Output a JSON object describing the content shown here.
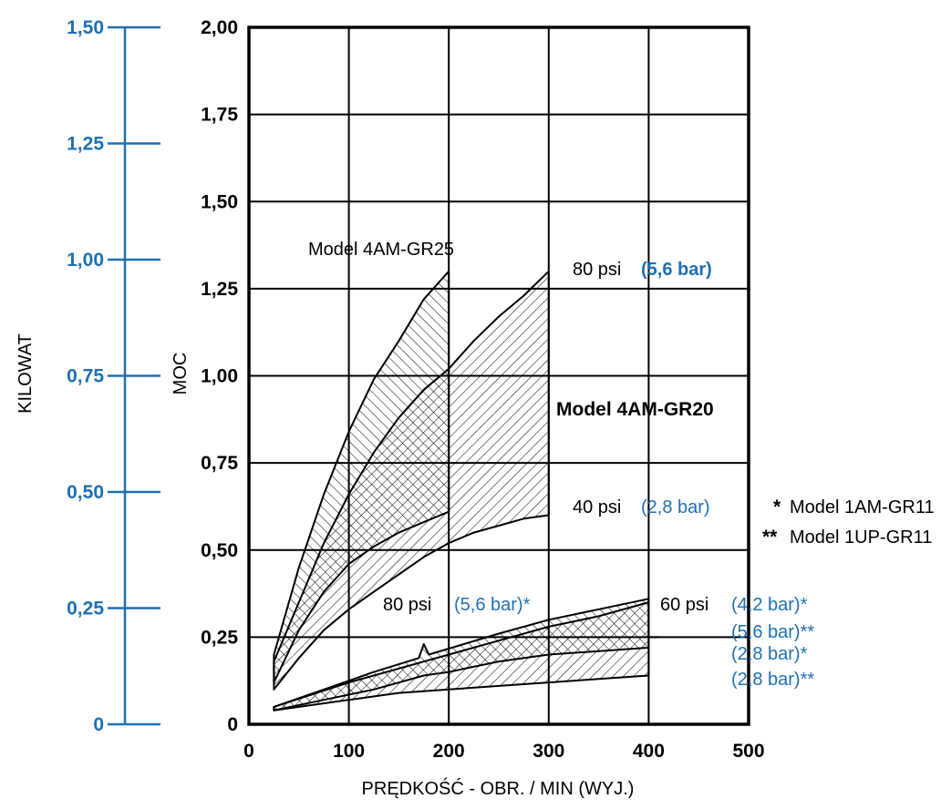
{
  "colors": {
    "accent_blue": "#1f6fb2",
    "ink": "#000000"
  },
  "chart_data": {
    "type": "area",
    "xlabel": "PRĘDKOŚĆ - OBR. / MIN (WYJ.)",
    "ylabel": "MOC",
    "ylabel_secondary": "KILOWAT",
    "xlim": [
      0,
      500
    ],
    "ylim": [
      0,
      2.0
    ],
    "ylim_secondary": [
      0,
      1.5
    ],
    "x_ticks": [
      "0",
      "100",
      "200",
      "300",
      "400",
      "500"
    ],
    "y_ticks": [
      "0",
      "0,25",
      "0,50",
      "0,75",
      "1,00",
      "1,25",
      "1,50",
      "1,75",
      "2,00"
    ],
    "y_ticks_secondary": [
      "0",
      "0,25",
      "0,50",
      "0,75",
      "1,00",
      "1,25",
      "1,50"
    ],
    "grid": true,
    "bands": [
      {
        "name": "Model 4AM-GR25",
        "hatch": "back-diagonal",
        "upper": [
          [
            25,
            0.2
          ],
          [
            50,
            0.45
          ],
          [
            75,
            0.66
          ],
          [
            100,
            0.84
          ],
          [
            125,
            0.99
          ],
          [
            150,
            1.1
          ],
          [
            175,
            1.22
          ],
          [
            200,
            1.3
          ]
        ],
        "lower": [
          [
            25,
            0.12
          ],
          [
            50,
            0.27
          ],
          [
            75,
            0.38
          ],
          [
            100,
            0.46
          ],
          [
            125,
            0.51
          ],
          [
            150,
            0.55
          ],
          [
            175,
            0.58
          ],
          [
            200,
            0.61
          ]
        ]
      },
      {
        "name": "Model 4AM-GR20",
        "hatch": "forward-diagonal",
        "upper": [
          [
            25,
            0.18
          ],
          [
            50,
            0.35
          ],
          [
            75,
            0.52
          ],
          [
            100,
            0.66
          ],
          [
            125,
            0.78
          ],
          [
            150,
            0.88
          ],
          [
            175,
            0.96
          ],
          [
            200,
            1.02
          ],
          [
            225,
            1.1
          ],
          [
            250,
            1.17
          ],
          [
            275,
            1.23
          ],
          [
            300,
            1.3
          ]
        ],
        "lower": [
          [
            25,
            0.1
          ],
          [
            50,
            0.19
          ],
          [
            75,
            0.27
          ],
          [
            100,
            0.33
          ],
          [
            125,
            0.38
          ],
          [
            150,
            0.43
          ],
          [
            175,
            0.48
          ],
          [
            200,
            0.52
          ],
          [
            225,
            0.55
          ],
          [
            250,
            0.57
          ],
          [
            275,
            0.59
          ],
          [
            300,
            0.6
          ]
        ]
      },
      {
        "name": "Model 1AM-GR11",
        "hatch": "back-diagonal",
        "upper": [
          [
            25,
            0.05
          ],
          [
            75,
            0.1
          ],
          [
            125,
            0.15
          ],
          [
            170,
            0.19
          ],
          [
            175,
            0.23
          ],
          [
            180,
            0.2
          ],
          [
            250,
            0.26
          ],
          [
            300,
            0.3
          ],
          [
            350,
            0.33
          ],
          [
            400,
            0.36
          ]
        ],
        "lower": [
          [
            25,
            0.04
          ],
          [
            75,
            0.07
          ],
          [
            125,
            0.1
          ],
          [
            175,
            0.14
          ],
          [
            200,
            0.15
          ],
          [
            250,
            0.18
          ],
          [
            300,
            0.2
          ],
          [
            350,
            0.21
          ],
          [
            400,
            0.22
          ]
        ]
      },
      {
        "name": "Model 1UP-GR11",
        "hatch": "forward-diagonal",
        "upper": [
          [
            25,
            0.05
          ],
          [
            100,
            0.12
          ],
          [
            150,
            0.16
          ],
          [
            200,
            0.2
          ],
          [
            250,
            0.24
          ],
          [
            300,
            0.28
          ],
          [
            350,
            0.31
          ],
          [
            400,
            0.35
          ]
        ],
        "lower": [
          [
            25,
            0.04
          ],
          [
            100,
            0.07
          ],
          [
            150,
            0.09
          ],
          [
            200,
            0.1
          ],
          [
            250,
            0.11
          ],
          [
            300,
            0.12
          ],
          [
            350,
            0.13
          ],
          [
            400,
            0.14
          ]
        ]
      }
    ],
    "annotations": {
      "model_4am_gr25": "Model 4AM-GR25",
      "psi80_top": "80 psi",
      "bar56_top": "(5,6 bar)",
      "model_4am_gr20": "Model 4AM-GR20",
      "psi40": "40 psi",
      "bar28_mid": "(2,8 bar)",
      "legend_single_star": "*",
      "legend_1am": "Model 1AM-GR11",
      "legend_double_star": "**",
      "legend_1up": "Model 1UP-GR11",
      "psi80_low": "80 psi",
      "bar56_low": "(5,6 bar)*",
      "psi60": "60 psi",
      "bar42": "(4,2 bar)*",
      "bar56_dd": "(5,6 bar)**",
      "bar28_s": "(2,8 bar)*",
      "bar28_dd": "(2,8 bar)**"
    }
  }
}
